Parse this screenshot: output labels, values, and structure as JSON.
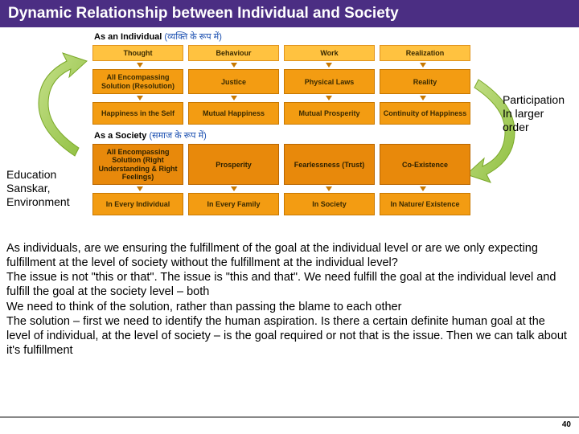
{
  "title": "Dynamic Relationship between Individual and Society",
  "slide_number": "40",
  "right_annotation": "Participation\nIn larger\norder",
  "left_annotation": "Education\nSanskar,\nEnvironment",
  "individual": {
    "header": "As an Individual",
    "header_hindi": "(व्यक्ति के रूप में)",
    "row1": [
      "Thought",
      "Behaviour",
      "Work",
      "Realization"
    ],
    "row2": [
      "All Encompassing Solution (Resolution)",
      "Justice",
      "Physical Laws",
      "Reality"
    ],
    "row3": [
      "Happiness in the Self",
      "Mutual Happiness",
      "Mutual Prosperity",
      "Continuity of Happiness"
    ]
  },
  "society": {
    "header": "As a Society",
    "header_hindi": "(समाज के रूप में)",
    "row1": [
      "All Encompassing Solution (Right Understanding & Right Feelings)",
      "Prosperity",
      "Fearlessness (Trust)",
      "Co-Existence"
    ],
    "row2": [
      "In Every Individual",
      "In Every Family",
      "In Society",
      "In Nature/ Existence"
    ]
  },
  "body_text": "As individuals, are we ensuring the fulfillment of the goal at the individual level or are we only expecting fulfillment at the level of society without the fulfillment at the individual level?\nThe issue is not \"this or that\". The issue is \"this and that\". We need fulfill the goal at the individual level and fulfill the goal at the society level – both\nWe need to think of the solution, rather than passing the blame to each other\nThe solution – first we need to identify the human aspiration. Is there a certain definite human goal at the level of individual, at the level of society – is the goal required or not that is the issue. Then we can talk about it's fulfillment",
  "colors": {
    "title_bg": "#4b2e83",
    "box_light": "#ffc240",
    "box_dark": "#f39c12",
    "box_darker": "#e8890b",
    "arrow_green": "#9acd32",
    "arrow_green_dark": "#7aa828"
  }
}
